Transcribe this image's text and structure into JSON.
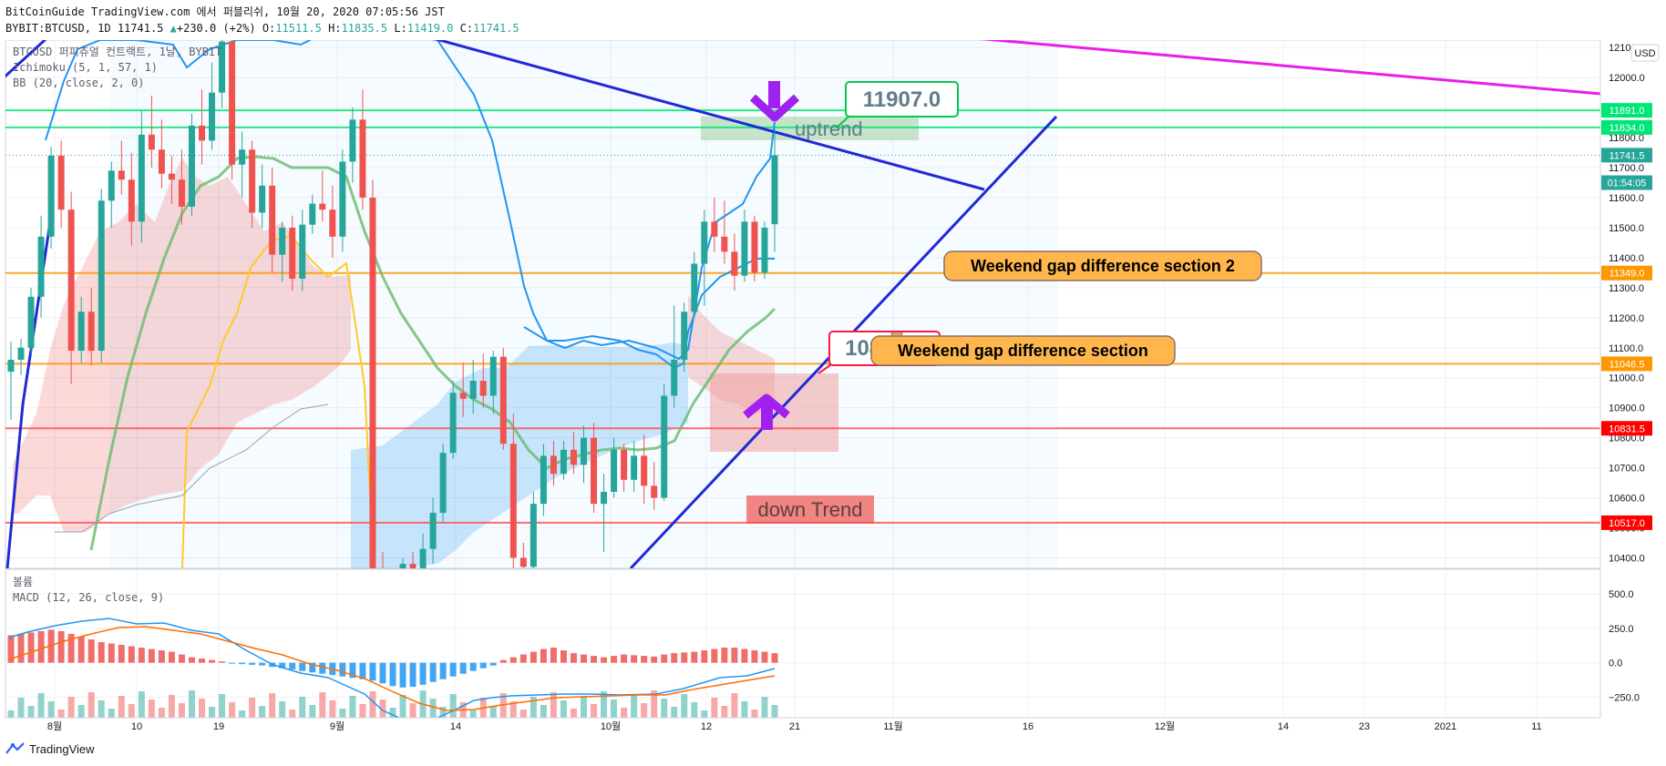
{
  "header": {
    "publish_line": "BitCoinGuide TradingView.com 에서 퍼블리쉬, 10월 20, 2020 07:05:56 JST",
    "symbol": "BYBIT:BTCUSD, 1D",
    "last": "11741.5",
    "change": "+230.0 (+2%)",
    "o_label": "O:",
    "o": "11511.5",
    "h_label": "H:",
    "h": "11835.5",
    "l_label": "L:",
    "l": "11419.0",
    "c_label": "C:",
    "c": "11741.5"
  },
  "legend": {
    "title": "BTCUSD 퍼피츄얼 컨트랙트, 1날, BYBIT",
    "ichimoku": "Ichimoku (5, 1, 57, 1)",
    "bb": "BB (20, close, 2, 0)"
  },
  "lower_legend": {
    "volume": "볼륨",
    "macd": "MACD (12, 26, close, 9)"
  },
  "currency": "USD",
  "price_axis": {
    "ticks": [
      "12100.0",
      "12000.0",
      "11900.0",
      "11800.0",
      "11700.0",
      "11600.0",
      "11500.0",
      "11400.0",
      "11300.0",
      "11200.0",
      "11100.0",
      "11000.0",
      "10900.0",
      "10800.0",
      "10700.0",
      "10600.0",
      "10500.0",
      "10400.0"
    ],
    "range": [
      10365,
      12125
    ]
  },
  "macd_axis": {
    "ticks": [
      "500.0",
      "250.0",
      "0.0",
      "−250.0"
    ],
    "range": [
      -400,
      680
    ]
  },
  "time_axis": {
    "labels": [
      "8월",
      "10",
      "19",
      "9월",
      "14",
      "10월",
      "12",
      "21",
      "11월",
      "16",
      "12월",
      "14",
      "23",
      "2021",
      "11"
    ]
  },
  "price_labels": [
    {
      "text": "11891.0",
      "value": 11891,
      "color": "#00e676"
    },
    {
      "text": "11834.0",
      "value": 11834,
      "color": "#00e676"
    },
    {
      "text": "11741.5",
      "value": 11741.5,
      "color": "#26a69a"
    },
    {
      "text": "01:54:05",
      "value": 11650,
      "color": "#26a69a"
    },
    {
      "text": "11349.0",
      "value": 11349,
      "color": "#ff9800"
    },
    {
      "text": "11046.5",
      "value": 11046.5,
      "color": "#ff9800"
    },
    {
      "text": "10831.5",
      "value": 10831.5,
      "color": "#ff0000"
    },
    {
      "text": "10517.0",
      "value": 10517,
      "color": "#ff0000"
    }
  ],
  "annotations": {
    "uptrend": "uptrend",
    "down_trend": "down Trend",
    "gap2": "Weekend gap difference section 2",
    "gap1": "Weekend gap difference section",
    "callout_high": "11907.0",
    "callout_low": "10834.5"
  },
  "colors": {
    "up": "#26a69a",
    "down": "#ef5350",
    "orange": "#ff9800",
    "green_line": "#00e676",
    "red_line": "#ff5252",
    "trend_blue": "#2029d6",
    "magenta": "#e91ee9",
    "purple_arrow": "#a020f0"
  },
  "footer": {
    "brand": "TradingView"
  },
  "chart_data": {
    "type": "candlestick",
    "symbol": "BYBIT:BTCUSD",
    "interval": "1D",
    "last_candle": {
      "open": 11511.5,
      "high": 11835.5,
      "low": 11419.0,
      "close": 11741.5
    },
    "horizontal_levels": [
      11891.0,
      11834.0,
      11349.0,
      11046.5,
      10831.5,
      10517.0
    ],
    "callouts": [
      11907.0,
      10834.5
    ],
    "ylim": [
      10365,
      12125
    ]
  }
}
